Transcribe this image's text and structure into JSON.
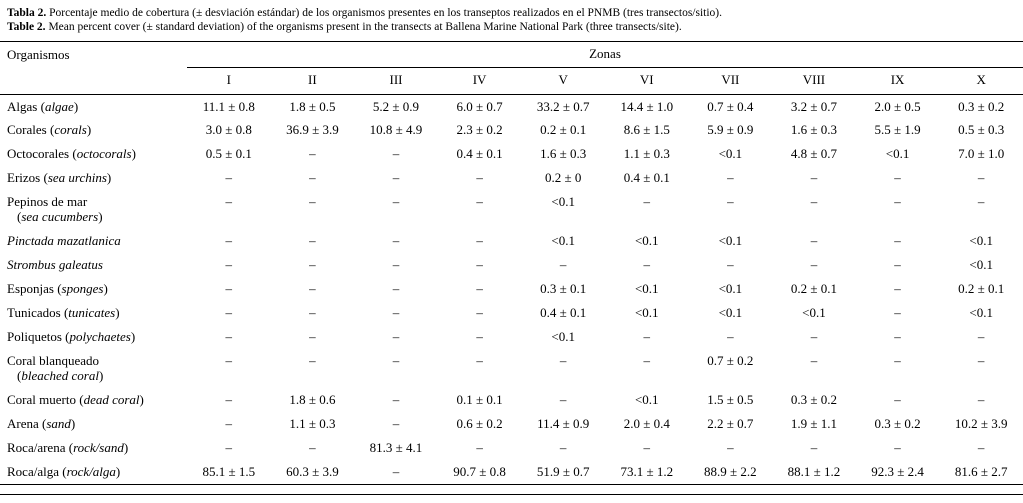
{
  "caption": {
    "es_label": "Tabla 2.",
    "es_text": " Porcentaje medio de cobertura (± desviación estándar) de los organismos presentes en los transeptos realizados en el PNMB (tres transectos/sitio).",
    "en_label": "Table 2.",
    "en_text": " Mean percent cover (± standard deviation) of the organisms present in the transects at Ballena Marine National Park (three transects/site)."
  },
  "table": {
    "organism_header": "Organismos",
    "zones_header": "Zonas",
    "zone_columns": [
      "I",
      "II",
      "III",
      "IV",
      "V",
      "VI",
      "VII",
      "VIII",
      "IX",
      "X"
    ],
    "rows": [
      {
        "name": "Algas",
        "paren": "algae",
        "values": [
          "11.1 ± 0.8",
          "1.8 ± 0.5",
          "5.2 ± 0.9",
          "6.0 ± 0.7",
          "33.2 ± 0.7",
          "14.4 ± 1.0",
          "0.7 ± 0.4",
          "3.2 ± 0.7",
          "2.0 ± 0.5",
          "0.3 ± 0.2"
        ]
      },
      {
        "name": "Corales",
        "paren": "corals",
        "values": [
          "3.0 ± 0.8",
          "36.9 ± 3.9",
          "10.8 ± 4.9",
          "2.3 ± 0.2",
          "0.2 ± 0.1",
          "8.6 ± 1.5",
          "5.9 ± 0.9",
          "1.6 ± 0.3",
          "5.5 ± 1.9",
          "0.5 ± 0.3"
        ]
      },
      {
        "name": "Octocorales",
        "paren": "octocorals",
        "values": [
          "0.5 ± 0.1",
          "–",
          "–",
          "0.4 ± 0.1",
          "1.6 ± 0.3",
          "1.1 ± 0.3",
          "<0.1",
          "4.8 ± 0.7",
          "<0.1",
          "7.0 ± 1.0"
        ]
      },
      {
        "name": "Erizos",
        "paren": "sea urchins",
        "values": [
          "–",
          "–",
          "–",
          "–",
          "0.2 ± 0",
          "0.4 ± 0.1",
          "–",
          "–",
          "–",
          "–"
        ]
      },
      {
        "name": "Pepinos de mar",
        "paren2": "sea cucumbers",
        "values": [
          "–",
          "–",
          "–",
          "–",
          "<0.1",
          "–",
          "–",
          "–",
          "–",
          "–"
        ]
      },
      {
        "italic": "Pinctada mazatlanica",
        "values": [
          "–",
          "–",
          "–",
          "–",
          "<0.1",
          "<0.1",
          "<0.1",
          "–",
          "–",
          "<0.1"
        ]
      },
      {
        "italic": "Strombus galeatus",
        "values": [
          "–",
          "–",
          "–",
          "–",
          "–",
          "–",
          "–",
          "–",
          "–",
          "<0.1"
        ]
      },
      {
        "name": "Esponjas",
        "paren": "sponges",
        "values": [
          "–",
          "–",
          "–",
          "–",
          "0.3 ± 0.1",
          "<0.1",
          "<0.1",
          "0.2 ± 0.1",
          "–",
          "0.2 ± 0.1"
        ]
      },
      {
        "name": "Tunicados",
        "paren": "tunicates",
        "values": [
          "–",
          "–",
          "–",
          "–",
          "0.4 ± 0.1",
          "<0.1",
          "<0.1",
          "<0.1",
          "–",
          "<0.1"
        ]
      },
      {
        "name": "Poliquetos",
        "paren": "polychaetes",
        "values": [
          "–",
          "–",
          "–",
          "–",
          "<0.1",
          "–",
          "–",
          "–",
          "–",
          "–"
        ]
      },
      {
        "name": "Coral blanqueado",
        "paren2": "bleached coral",
        "values": [
          "–",
          "–",
          "–",
          "–",
          "–",
          "–",
          "0.7 ± 0.2",
          "–",
          "–",
          "–"
        ]
      },
      {
        "name": "Coral muerto",
        "paren": "dead coral",
        "values": [
          "–",
          "1.8 ± 0.6",
          "–",
          "0.1 ± 0.1",
          "–",
          "<0.1",
          "1.5 ± 0.5",
          "0.3 ± 0.2",
          "–",
          "–"
        ]
      },
      {
        "name": "Arena",
        "paren": "sand",
        "values": [
          "–",
          "1.1 ± 0.3",
          "–",
          "0.6 ± 0.2",
          "11.4 ± 0.9",
          "2.0 ± 0.4",
          "2.2 ± 0.7",
          "1.9 ± 1.1",
          "0.3 ± 0.2",
          "10.2 ± 3.9"
        ]
      },
      {
        "name": "Roca/arena",
        "paren": "rock/sand",
        "values": [
          "–",
          "–",
          "81.3 ± 4.1",
          "–",
          "–",
          "–",
          "–",
          "–",
          "–",
          "–"
        ]
      },
      {
        "name": "Roca/alga",
        "paren": "rock/alga",
        "values": [
          "85.1 ± 1.5",
          "60.3 ± 3.9",
          "–",
          "90.7 ± 0.8",
          "51.9 ± 0.7",
          "73.1 ± 1.2",
          "88.9 ± 2.2",
          "88.1 ± 1.2",
          "92.3 ± 2.4",
          "81.6 ± 2.7"
        ]
      }
    ]
  }
}
